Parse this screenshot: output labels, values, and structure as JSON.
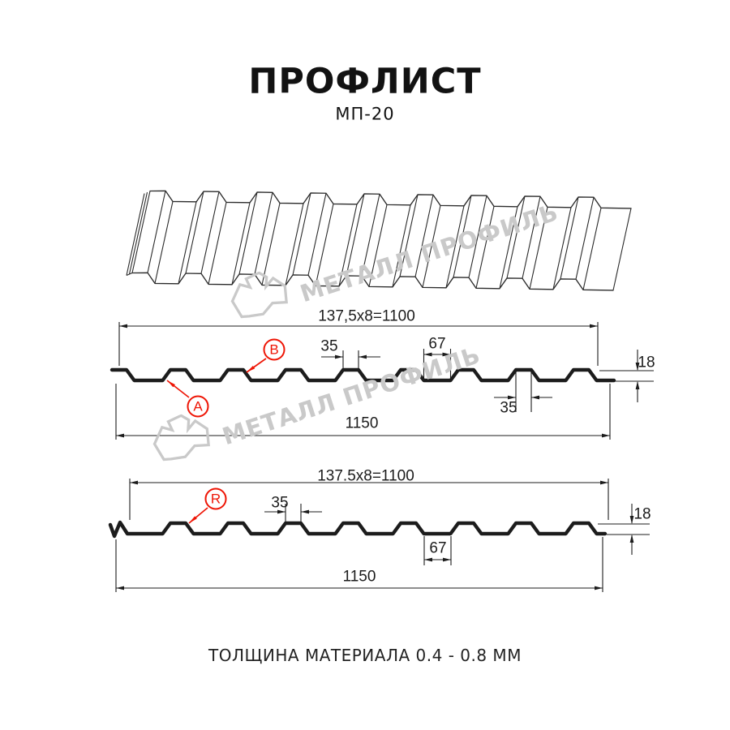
{
  "title": "ПРОФЛИСТ",
  "subtitle": "МП-20",
  "watermark": {
    "brand": "МЕТАЛЛ ПРОФИЛЬ"
  },
  "footer": {
    "thickness_note": "ТОЛЩИНА МАТЕРИАЛА 0.4 - 0.8 ММ"
  },
  "colors": {
    "accent_red": "#ee1505",
    "line_dark": "#1c1c1c",
    "line_3d": "#2b2b2b",
    "watermark_gray": "#c9c9c9"
  },
  "section_a": {
    "pitch_dim": "137,5x8=1100",
    "rib_top_width": "35",
    "valley_width": "67",
    "profile_height": "18",
    "rib_top_width_2": "35",
    "overall_width": "1150",
    "side_label_a": "A",
    "side_label_b": "B"
  },
  "section_r": {
    "pitch_dim": "137.5x8=1100",
    "rib_top_width": "35",
    "valley_width": "67",
    "profile_height": "18",
    "overall_width": "1150",
    "side_label_r": "R"
  }
}
